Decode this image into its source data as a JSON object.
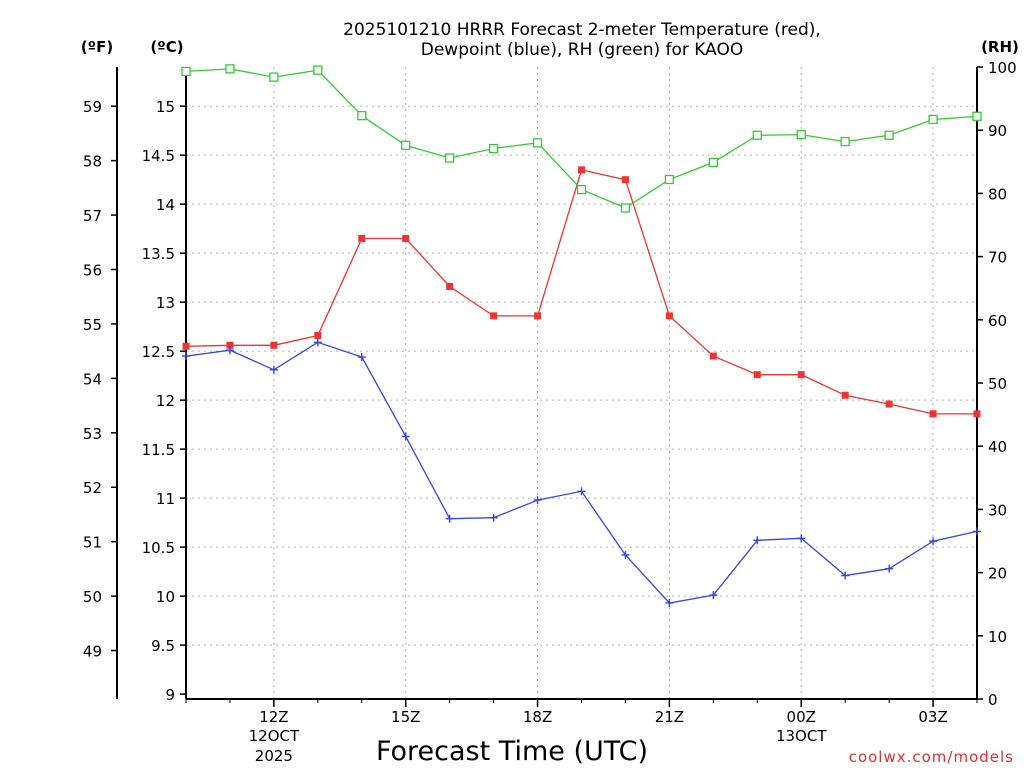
{
  "chart_data": {
    "type": "line",
    "title_line1": "2025101210 HRRR Forecast 2-meter Temperature (red),",
    "title_line2": "Dewpoint (blue), RH (green) for KAOO",
    "xlabel": "Forecast Time (UTC)",
    "credit": "coolwx.com/models",
    "units": {
      "fahrenheit": "(ºF)",
      "celsius": "(ºC)",
      "rh": "(RH)"
    },
    "x_hours": [
      0,
      1,
      2,
      3,
      4,
      5,
      6,
      7,
      8,
      9,
      10,
      11,
      12,
      13,
      14,
      15,
      16,
      17,
      18
    ],
    "x_range": [
      0,
      18
    ],
    "celsius_axis": {
      "range": [
        8.95,
        15.4
      ],
      "ticks": [
        9,
        9.5,
        10,
        10.5,
        11,
        11.5,
        12,
        12.5,
        13,
        13.5,
        14,
        14.5,
        15
      ]
    },
    "fahrenheit_ticks": [
      49,
      50,
      51,
      52,
      53,
      54,
      55,
      56,
      57,
      58,
      59
    ],
    "rh_axis": {
      "range": [
        0,
        100
      ],
      "ticks": [
        0,
        10,
        20,
        30,
        40,
        50,
        60,
        70,
        80,
        90,
        100
      ]
    },
    "x_ticks": [
      {
        "hour": 2,
        "label": "12Z",
        "sub1": "12OCT",
        "sub2": "2025"
      },
      {
        "hour": 5,
        "label": "15Z",
        "sub1": "",
        "sub2": ""
      },
      {
        "hour": 8,
        "label": "18Z",
        "sub1": "",
        "sub2": ""
      },
      {
        "hour": 11,
        "label": "21Z",
        "sub1": "",
        "sub2": ""
      },
      {
        "hour": 14,
        "label": "00Z",
        "sub1": "13OCT",
        "sub2": ""
      },
      {
        "hour": 17,
        "label": "03Z",
        "sub1": "",
        "sub2": ""
      }
    ],
    "series": [
      {
        "name": "Temperature",
        "axis": "celsius",
        "color": "#ee3333",
        "marker": "filled-square",
        "values": [
          12.55,
          12.56,
          12.56,
          12.66,
          13.65,
          13.65,
          13.16,
          12.86,
          12.86,
          14.35,
          14.25,
          12.86,
          12.45,
          12.26,
          12.26,
          12.05,
          11.96,
          11.86,
          11.86
        ]
      },
      {
        "name": "Dewpoint",
        "axis": "celsius",
        "color": "#3344ee",
        "marker": "plus",
        "values": [
          12.45,
          12.51,
          12.31,
          12.59,
          12.44,
          11.63,
          10.79,
          10.8,
          10.98,
          11.07,
          10.42,
          9.93,
          10.01,
          10.57,
          10.59,
          10.21,
          10.28,
          10.56,
          10.66
        ]
      },
      {
        "name": "RH",
        "axis": "rh",
        "color": "#33cc33",
        "marker": "open-square",
        "values": [
          99.3,
          99.7,
          98.4,
          99.5,
          92.3,
          87.6,
          85.6,
          87.1,
          88.0,
          80.6,
          77.7,
          82.2,
          84.9,
          89.2,
          89.3,
          88.2,
          89.2,
          91.7,
          92.2
        ]
      }
    ]
  }
}
